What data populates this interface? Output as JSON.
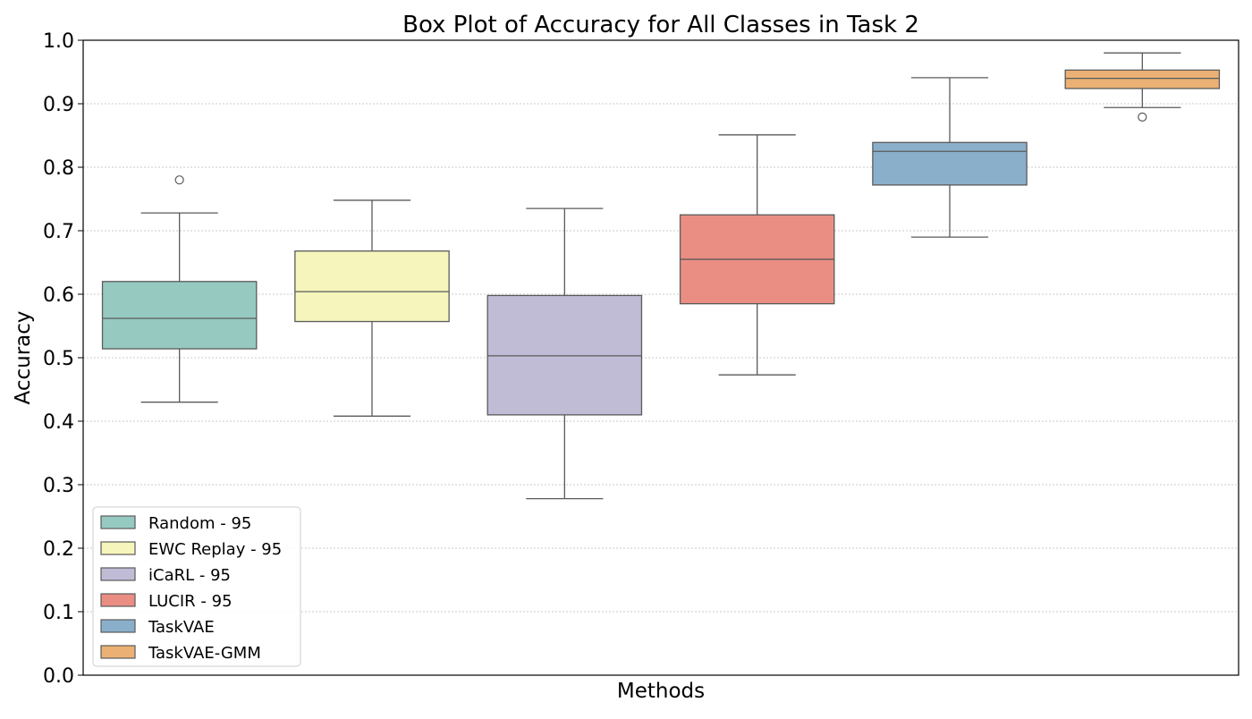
{
  "chart_data": {
    "type": "box",
    "title": "Box Plot of Accuracy for All Classes in Task 2",
    "xlabel": "Methods",
    "ylabel": "Accuracy",
    "ylim": [
      0.0,
      1.0
    ],
    "yticks": [
      "0.0",
      "0.1",
      "0.2",
      "0.3",
      "0.4",
      "0.5",
      "0.6",
      "0.7",
      "0.8",
      "0.9",
      "1.0"
    ],
    "grid": "horizontal dotted",
    "legend_position": "lower-left",
    "series": [
      {
        "name": "Random - 95",
        "color": "#96cac1",
        "whisker_low": 0.43,
        "q1": 0.514,
        "median": 0.562,
        "q3": 0.62,
        "whisker_high": 0.728,
        "outliers": [
          0.78
        ]
      },
      {
        "name": "EWC Replay - 95",
        "color": "#f6f6bc",
        "whisker_low": 0.408,
        "q1": 0.557,
        "median": 0.604,
        "q3": 0.668,
        "whisker_high": 0.748,
        "outliers": []
      },
      {
        "name": "iCaRL - 95",
        "color": "#c0bcd6",
        "whisker_low": 0.278,
        "q1": 0.41,
        "median": 0.503,
        "q3": 0.598,
        "whisker_high": 0.735,
        "outliers": []
      },
      {
        "name": "LUCIR - 95",
        "color": "#ea8e83",
        "whisker_low": 0.473,
        "q1": 0.585,
        "median": 0.655,
        "q3": 0.725,
        "whisker_high": 0.851,
        "outliers": []
      },
      {
        "name": "TaskVAE",
        "color": "#8aafcb",
        "whisker_low": 0.69,
        "q1": 0.772,
        "median": 0.825,
        "q3": 0.839,
        "whisker_high": 0.941,
        "outliers": []
      },
      {
        "name": "TaskVAE-GMM",
        "color": "#ebb174",
        "whisker_low": 0.894,
        "q1": 0.924,
        "median": 0.94,
        "q3": 0.953,
        "whisker_high": 0.98,
        "outliers": [
          0.879
        ]
      }
    ]
  }
}
